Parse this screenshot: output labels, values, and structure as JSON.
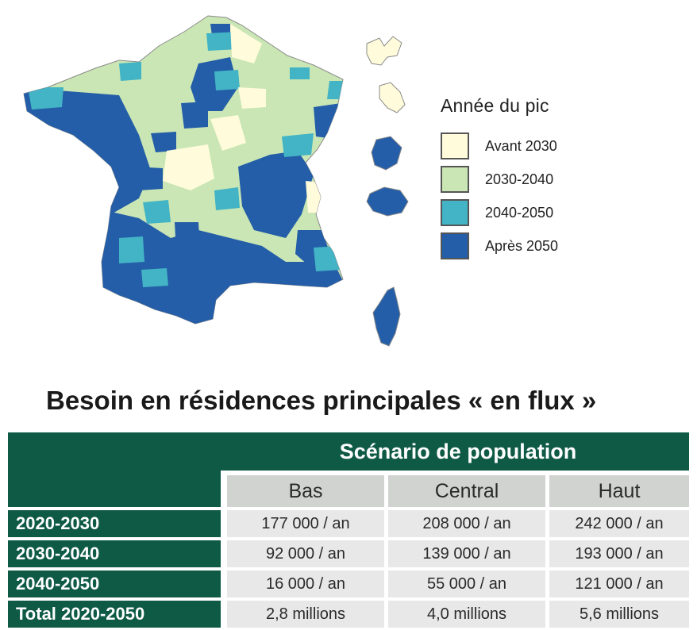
{
  "legend": {
    "title": "Année du pic",
    "items": [
      {
        "label": "Avant 2030",
        "color": "#fffbdb"
      },
      {
        "label": "2030-2040",
        "color": "#c9e6b4"
      },
      {
        "label": "2040-2050",
        "color": "#42b4c5"
      },
      {
        "label": "Après 2050",
        "color": "#245ea8"
      }
    ]
  },
  "table": {
    "title": "Besoin en résidences principales « en flux »",
    "scenario_header": "Scénario de population",
    "columns": [
      "Bas",
      "Central",
      "Haut"
    ],
    "rows": [
      {
        "label": "2020-2030",
        "values": [
          "177 000 / an",
          "208 000 / an",
          "242 000 / an"
        ]
      },
      {
        "label": "2030-2040",
        "values": [
          "92 000 / an",
          "139 000 / an",
          "193 000 / an"
        ]
      },
      {
        "label": "2040-2050",
        "values": [
          "16 000 / an",
          "55 000 / an",
          "121 000 / an"
        ]
      },
      {
        "label": "Total 2020-2050",
        "values": [
          "2,8 millions",
          "4,0 millions",
          "5,6 millions"
        ]
      }
    ]
  }
}
